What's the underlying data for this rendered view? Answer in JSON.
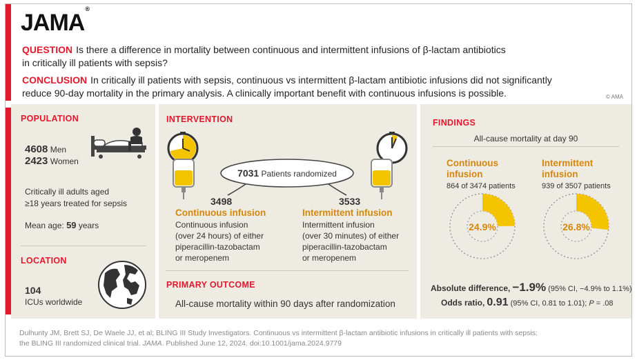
{
  "logo": "JAMA",
  "question": {
    "keyword": "QUESTION",
    "line1": "Is there a difference in mortality between continuous and intermittent infusions of β-lactam antibiotics",
    "line2": "in critically ill patients with sepsis?"
  },
  "conclusion": {
    "keyword": "CONCLUSION",
    "line1": "In critically ill patients with sepsis, continuous vs intermittent β-lactam antibiotic infusions did not significantly",
    "line2": "reduce 90-day mortality in the primary analysis. A clinically important benefit with continuous infusions is possible."
  },
  "copyright": "© AMA",
  "population": {
    "heading": "POPULATION",
    "men_count": "4608",
    "men_label": "Men",
    "women_count": "2423",
    "women_label": "Women",
    "desc1": "Critically ill adults aged",
    "desc2": "≥18 years treated for sepsis",
    "mean_age_label": "Mean age:",
    "mean_age_value": "59",
    "mean_age_unit": "years"
  },
  "location": {
    "heading": "LOCATION",
    "count": "104",
    "label": "ICUs worldwide"
  },
  "intervention": {
    "heading": "INTERVENTION",
    "randomized_count": "7031",
    "randomized_label": "Patients randomized",
    "continuous": {
      "count": "3498",
      "title": "Continuous infusion",
      "desc1": "Continuous infusion",
      "desc2": "(over 24 hours) of either",
      "desc3": "piperacillin-tazobactam",
      "desc4": "or meropenem"
    },
    "intermittent": {
      "count": "3533",
      "title": "Intermittent infusion",
      "desc1": "Intermittent infusion",
      "desc2": "(over 30 minutes) of either",
      "desc3": "piperacillin-tazobactam",
      "desc4": "or meropenem"
    }
  },
  "primary_outcome": {
    "heading": "PRIMARY OUTCOME",
    "text": "All-cause mortality within 90 days after randomization"
  },
  "findings": {
    "heading": "FINDINGS",
    "subtitle": "All-cause mortality at day 90",
    "continuous": {
      "title1": "Continuous",
      "title2": "infusion",
      "counts": "864 of 3474 patients",
      "percent_label": "24.9%",
      "percent_value": 24.9
    },
    "intermittent": {
      "title1": "Intermittent",
      "title2": "infusion",
      "counts": "939 of 3507 patients",
      "percent_label": "26.8%",
      "percent_value": 26.8
    },
    "absdiff_label": "Absolute difference,",
    "absdiff_value": "−1.9%",
    "absdiff_ci": "(95% CI, −4.9% to 1.1%)",
    "or_label": "Odds ratio,",
    "or_value": "0.91",
    "or_ci": "(95% CI, 0.81 to 1.01);",
    "p_label": "P",
    "p_value": "= .08"
  },
  "footer": {
    "line1": "Dulhunty JM, Brett SJ, De Waele JJ, et al; BLING III Study Investigators. Continuous vs intermittent β-lactam antibiotic infusions in critically ill patients with sepsis:",
    "line2a": "the BLING III randomized clinical trial.",
    "journal": "JAMA",
    "line2b": ". Published June 12, 2024. doi:10.1001/jama.2024.9779"
  },
  "colors": {
    "red": "#e2192c",
    "gold": "#d4870b",
    "yellow": "#f5c400",
    "panel": "#eeebe3"
  }
}
